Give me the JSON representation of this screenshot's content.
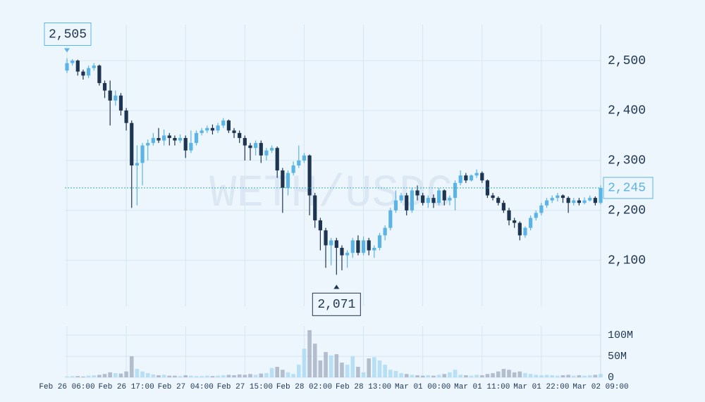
{
  "chart_data": {
    "type": "candlestick",
    "watermark": "WETH/USDC",
    "categories": [
      "Feb 26 06:00",
      null,
      null,
      null,
      null,
      null,
      null,
      null,
      null,
      null,
      null,
      "Feb 26 17:00",
      null,
      null,
      null,
      null,
      null,
      null,
      null,
      null,
      null,
      null,
      "Feb 27 04:00",
      null,
      null,
      null,
      null,
      null,
      null,
      null,
      null,
      null,
      null,
      "Feb 27 15:00",
      null,
      null,
      null,
      null,
      null,
      null,
      null,
      null,
      null,
      null,
      "Feb 28 02:00",
      null,
      null,
      null,
      null,
      null,
      null,
      null,
      null,
      null,
      null,
      "Feb 28 13:00",
      null,
      null,
      null,
      null,
      null,
      null,
      null,
      null,
      null,
      null,
      "Mar 01 00:00",
      null,
      null,
      null,
      null,
      null,
      null,
      null,
      null,
      null,
      null,
      "Mar 01 11:00",
      null,
      null,
      null,
      null,
      null,
      null,
      null,
      null,
      null,
      null,
      "Mar 01 22:00",
      null,
      null,
      null,
      null,
      null,
      null,
      null,
      null,
      null,
      null,
      "Mar 02 09:00"
    ],
    "open": [
      2480,
      2495,
      2500,
      2478,
      2470,
      2485,
      2490,
      2455,
      2440,
      2420,
      2430,
      2400,
      2375,
      2290,
      2295,
      2330,
      2335,
      2345,
      2340,
      2350,
      2345,
      2340,
      2345,
      2320,
      2335,
      2355,
      2360,
      2365,
      2360,
      2370,
      2380,
      2360,
      2355,
      2345,
      2330,
      2325,
      2335,
      2310,
      2320,
      2325,
      2280,
      2245,
      2275,
      2290,
      2300,
      2310,
      2230,
      2180,
      2160,
      2130,
      2140,
      2125,
      2110,
      2115,
      2140,
      2115,
      2140,
      2120,
      2125,
      2150,
      2165,
      2200,
      2220,
      2230,
      2200,
      2240,
      2230,
      2215,
      2225,
      2215,
      2240,
      2220,
      2225,
      2255,
      2270,
      2260,
      2270,
      2275,
      2260,
      2230,
      2225,
      2215,
      2200,
      2180,
      2175,
      2150,
      2165,
      2185,
      2195,
      2210,
      2220,
      2225,
      2230,
      2225,
      2215,
      2220,
      2215,
      2220,
      2225,
      2215
    ],
    "close": [
      2495,
      2500,
      2478,
      2470,
      2485,
      2490,
      2455,
      2440,
      2420,
      2430,
      2400,
      2375,
      2290,
      2295,
      2330,
      2335,
      2345,
      2340,
      2350,
      2345,
      2340,
      2345,
      2320,
      2335,
      2355,
      2360,
      2365,
      2360,
      2370,
      2380,
      2360,
      2355,
      2345,
      2330,
      2325,
      2335,
      2310,
      2320,
      2325,
      2280,
      2245,
      2275,
      2290,
      2300,
      2310,
      2230,
      2180,
      2160,
      2130,
      2140,
      2125,
      2110,
      2115,
      2140,
      2115,
      2140,
      2120,
      2125,
      2150,
      2165,
      2200,
      2220,
      2230,
      2200,
      2240,
      2230,
      2215,
      2225,
      2215,
      2240,
      2220,
      2225,
      2255,
      2270,
      2260,
      2270,
      2275,
      2260,
      2230,
      2225,
      2215,
      2200,
      2180,
      2175,
      2150,
      2165,
      2185,
      2195,
      2210,
      2220,
      2225,
      2230,
      2225,
      2215,
      2220,
      2215,
      2220,
      2225,
      2215,
      2245
    ],
    "high": [
      2505,
      2503,
      2502,
      2482,
      2490,
      2495,
      2492,
      2460,
      2460,
      2440,
      2435,
      2405,
      2380,
      2330,
      2335,
      2342,
      2355,
      2365,
      2362,
      2355,
      2350,
      2352,
      2350,
      2360,
      2360,
      2365,
      2370,
      2372,
      2375,
      2385,
      2382,
      2365,
      2360,
      2350,
      2335,
      2340,
      2340,
      2325,
      2330,
      2328,
      2285,
      2280,
      2298,
      2330,
      2315,
      2312,
      2235,
      2185,
      2165,
      2145,
      2145,
      2130,
      2120,
      2145,
      2150,
      2148,
      2145,
      2130,
      2155,
      2170,
      2205,
      2240,
      2235,
      2235,
      2245,
      2250,
      2235,
      2230,
      2232,
      2245,
      2242,
      2230,
      2260,
      2280,
      2275,
      2272,
      2282,
      2278,
      2262,
      2235,
      2228,
      2220,
      2205,
      2185,
      2178,
      2168,
      2190,
      2200,
      2215,
      2225,
      2230,
      2235,
      2232,
      2228,
      2225,
      2225,
      2226,
      2230,
      2228,
      2250
    ],
    "low": [
      2475,
      2490,
      2470,
      2462,
      2465,
      2480,
      2450,
      2425,
      2370,
      2410,
      2390,
      2360,
      2205,
      2210,
      2250,
      2300,
      2330,
      2335,
      2330,
      2330,
      2330,
      2335,
      2305,
      2315,
      2330,
      2350,
      2355,
      2352,
      2355,
      2365,
      2355,
      2345,
      2335,
      2300,
      2300,
      2310,
      2295,
      2300,
      2315,
      2265,
      2195,
      2230,
      2270,
      2285,
      2295,
      2190,
      2165,
      2120,
      2085,
      2090,
      2071,
      2080,
      2085,
      2105,
      2110,
      2110,
      2110,
      2105,
      2120,
      2140,
      2160,
      2195,
      2215,
      2190,
      2195,
      2220,
      2210,
      2205,
      2205,
      2210,
      2210,
      2210,
      2200,
      2250,
      2255,
      2258,
      2265,
      2255,
      2225,
      2220,
      2210,
      2195,
      2170,
      2165,
      2140,
      2145,
      2160,
      2180,
      2190,
      2205,
      2215,
      2218,
      2215,
      2195,
      2210,
      2210,
      2212,
      2218,
      2210,
      2212
    ],
    "volume": [
      2,
      3,
      3,
      2,
      4,
      5,
      6,
      8,
      12,
      10,
      9,
      14,
      50,
      20,
      14,
      10,
      7,
      5,
      6,
      4,
      4,
      3,
      5,
      4,
      3,
      3,
      4,
      3,
      4,
      5,
      6,
      5,
      7,
      6,
      8,
      6,
      9,
      10,
      22,
      25,
      18,
      12,
      8,
      30,
      68,
      112,
      80,
      40,
      60,
      52,
      55,
      35,
      30,
      50,
      25,
      12,
      45,
      48,
      40,
      30,
      18,
      15,
      10,
      8,
      6,
      5,
      4,
      5,
      4,
      6,
      8,
      12,
      18,
      6,
      5,
      4,
      6,
      5,
      8,
      10,
      14,
      20,
      18,
      12,
      14,
      10,
      8,
      6,
      5,
      6,
      5,
      4,
      5,
      6,
      4,
      5,
      4,
      5,
      6,
      8
    ],
    "up_color": "#5ab4e5",
    "down_color": "#1e3552",
    "up_volume_color": "#a9d9f2",
    "down_volume_color": "#a3afc2",
    "ylim": [
      2008,
      2572
    ],
    "yticks": [
      {
        "value": 2100,
        "label": "2,100"
      },
      {
        "value": 2200,
        "label": "2,200"
      },
      {
        "value": 2300,
        "label": "2,300"
      },
      {
        "value": 2400,
        "label": "2,400"
      },
      {
        "value": 2500,
        "label": "2,500"
      }
    ],
    "volume_ylim": [
      0,
      122
    ],
    "volume_ticks": [
      {
        "value": 0,
        "label": "0"
      },
      {
        "value": 50,
        "label": "50M"
      },
      {
        "value": 100,
        "label": "100M"
      }
    ],
    "grid": true,
    "high_marker": {
      "value": 2505,
      "label": "2,505"
    },
    "low_marker": {
      "value": 2071,
      "label": "2,071"
    },
    "last_price": {
      "value": 2245,
      "label": "2,245"
    }
  }
}
